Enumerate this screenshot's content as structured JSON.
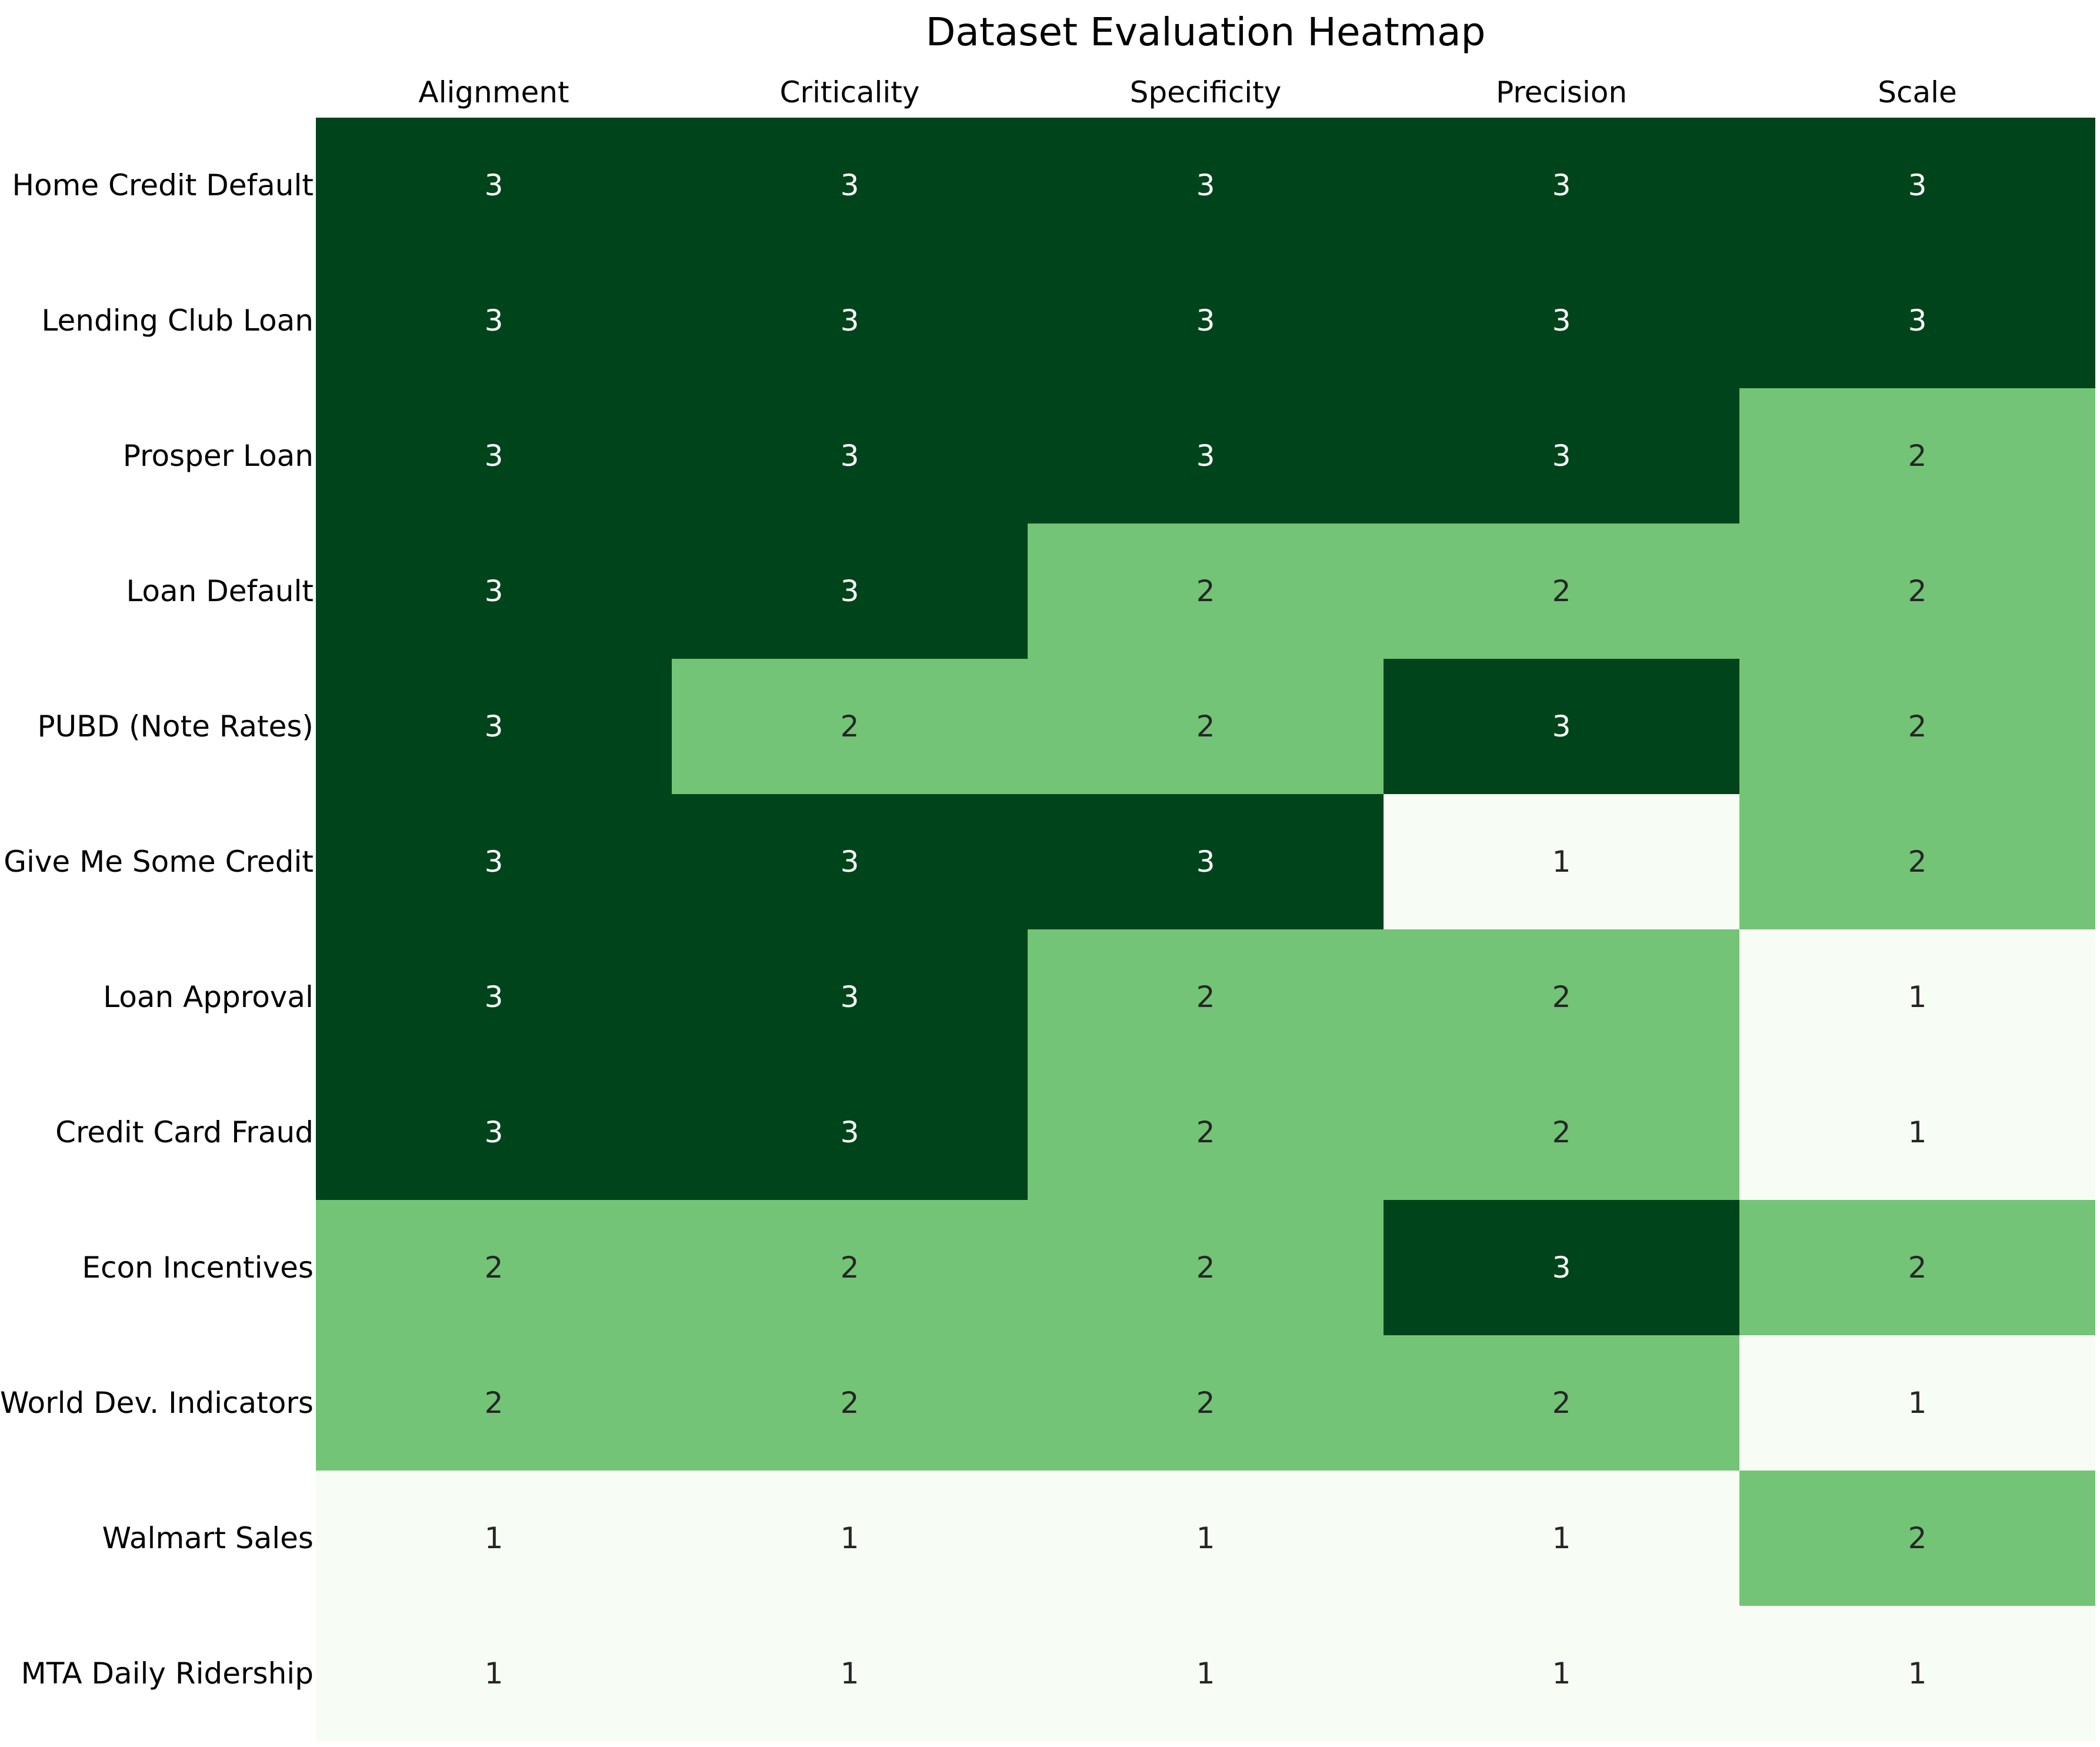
{
  "title": "Dataset Evaluation Heatmap",
  "chart_data": {
    "type": "heatmap",
    "title": "Dataset Evaluation Heatmap",
    "columns": [
      "Alignment",
      "Criticality",
      "Specificity",
      "Precision",
      "Scale"
    ],
    "rows": [
      "Home Credit Default",
      "Lending Club Loan",
      "Prosper Loan",
      "Loan Default",
      "PUBD (Note Rates)",
      "Give Me Some Credit",
      "Loan Approval",
      "Credit Card Fraud",
      "Econ Incentives",
      "World Dev. Indicators",
      "Walmart Sales",
      "MTA Daily Ridership"
    ],
    "values": [
      [
        3,
        3,
        3,
        3,
        3
      ],
      [
        3,
        3,
        3,
        3,
        3
      ],
      [
        3,
        3,
        3,
        3,
        2
      ],
      [
        3,
        3,
        2,
        2,
        2
      ],
      [
        3,
        2,
        2,
        3,
        2
      ],
      [
        3,
        3,
        3,
        1,
        2
      ],
      [
        3,
        3,
        2,
        2,
        1
      ],
      [
        3,
        3,
        2,
        2,
        1
      ],
      [
        2,
        2,
        2,
        3,
        2
      ],
      [
        2,
        2,
        2,
        2,
        1
      ],
      [
        1,
        1,
        1,
        1,
        2
      ],
      [
        1,
        1,
        1,
        1,
        1
      ]
    ],
    "value_range": [
      1,
      3
    ],
    "grid": "off",
    "legend": "none",
    "value_colors": {
      "1": "#f7fcf5",
      "2": "#73c476",
      "3": "#00441b"
    },
    "text_colors": {
      "1": "#262626",
      "2": "#262626",
      "3": "#ffffff"
    }
  }
}
